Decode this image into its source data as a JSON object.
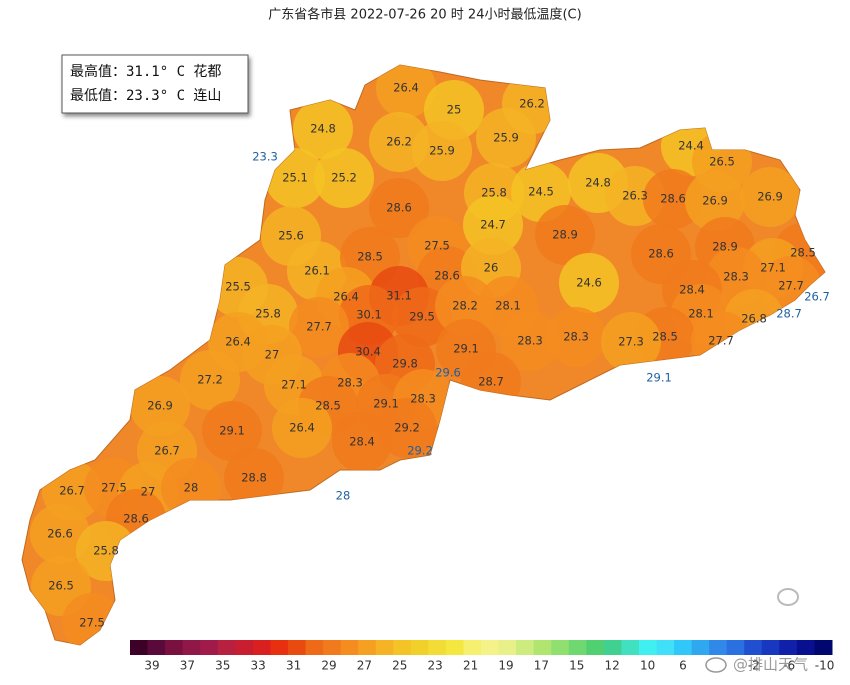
{
  "title": "广东省各市县 2022-07-26 20 时 24小时最低温度(C)",
  "info": {
    "max_line": "最高值：31.1° C 花都",
    "min_line": "最低值：23.3° C 连山"
  },
  "labels": [
    {
      "value": 26.4
    },
    {
      "value": 25
    },
    {
      "value": 26.2
    },
    {
      "value": 24.8
    },
    {
      "value": 26.2
    },
    {
      "value": 25.9
    },
    {
      "value": 25.9
    },
    {
      "value": 23.3,
      "color": "#1f5f9f"
    },
    {
      "value": 24.4
    },
    {
      "value": 26.5
    },
    {
      "value": 25.1
    },
    {
      "value": 25.2
    },
    {
      "value": 25.8
    },
    {
      "value": 24.5
    },
    {
      "value": 24.8
    },
    {
      "value": 26.3
    },
    {
      "value": 28.6
    },
    {
      "value": 26.9
    },
    {
      "value": 26.9
    },
    {
      "value": 28.6
    },
    {
      "value": 24.7
    },
    {
      "value": 25.6
    },
    {
      "value": 27.5
    },
    {
      "value": 28.9
    },
    {
      "value": 28.6
    },
    {
      "value": 28.9
    },
    {
      "value": 28.5
    },
    {
      "value": 26.1
    },
    {
      "value": 28.5
    },
    {
      "value": 28.6
    },
    {
      "value": 26
    },
    {
      "value": 27.1
    },
    {
      "value": 28.3
    },
    {
      "value": 25.5
    },
    {
      "value": 26.4
    },
    {
      "value": 31.1
    },
    {
      "value": 24.6
    },
    {
      "value": 28.4
    },
    {
      "value": 27.7
    },
    {
      "value": 26.7,
      "color": "#1f5f9f"
    },
    {
      "value": 25.8
    },
    {
      "value": 30.1
    },
    {
      "value": 29.5
    },
    {
      "value": 28.2
    },
    {
      "value": 28.1
    },
    {
      "value": 28.1
    },
    {
      "value": 26.8
    },
    {
      "value": 28.7,
      "color": "#1f5f9f"
    },
    {
      "value": 27.7
    },
    {
      "value": 26.4
    },
    {
      "value": 28.3
    },
    {
      "value": 28.3
    },
    {
      "value": 28.5
    },
    {
      "value": 27.7
    },
    {
      "value": 27
    },
    {
      "value": 30.4
    },
    {
      "value": 29.8
    },
    {
      "value": 29.1
    },
    {
      "value": 27.3
    },
    {
      "value": 27.2
    },
    {
      "value": 27.1
    },
    {
      "value": 28.3
    },
    {
      "value": 29.6,
      "color": "#1f5f9f"
    },
    {
      "value": 28.7
    },
    {
      "value": 29.1,
      "color": "#1f5f9f"
    },
    {
      "value": 26.9
    },
    {
      "value": 28.5
    },
    {
      "value": 29.1
    },
    {
      "value": 28.3
    },
    {
      "value": 29.1
    },
    {
      "value": 26.4
    },
    {
      "value": 29.2
    },
    {
      "value": 26.7
    },
    {
      "value": 28.4
    },
    {
      "value": 29.2,
      "color": "#1f5f9f"
    },
    {
      "value": 28.8
    },
    {
      "value": 26.7
    },
    {
      "value": 27.5
    },
    {
      "value": 27
    },
    {
      "value": 28
    },
    {
      "value": 28,
      "color": "#1f5f9f"
    },
    {
      "value": 28.6
    },
    {
      "value": 26.6
    },
    {
      "value": 25.8
    },
    {
      "value": 26.5
    },
    {
      "value": 27.5
    }
  ],
  "colorbar": {
    "labels": [
      39,
      37,
      35,
      33,
      31,
      29,
      27,
      25,
      23,
      21,
      19,
      17,
      15,
      12,
      10,
      6,
      2,
      -2,
      -6,
      -10
    ],
    "colors": [
      "#3d0026",
      "#5a0a3a",
      "#7a1040",
      "#8f1848",
      "#a01a4a",
      "#b8203f",
      "#c81e30",
      "#d82020",
      "#e83010",
      "#e84a10",
      "#ee6a18",
      "#f07a1c",
      "#f48c20",
      "#f5a020",
      "#f5b325",
      "#f4c325",
      "#f2d02a",
      "#f2dc35",
      "#f4e840",
      "#f6f070",
      "#f5f28a",
      "#e8f08a",
      "#ccec80",
      "#b0e670",
      "#90e070",
      "#70d870",
      "#50d070",
      "#40d090",
      "#40e0c0",
      "#40f0f0",
      "#40e0f8",
      "#30c8f8",
      "#30a8f0",
      "#3088e8",
      "#2a70e0",
      "#2050d0",
      "#1838c0",
      "#1020a8",
      "#081090",
      "#000870"
    ]
  },
  "watermark": "@排山天气"
}
